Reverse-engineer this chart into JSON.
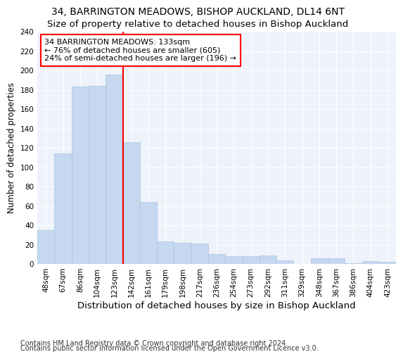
{
  "title": "34, BARRINGTON MEADOWS, BISHOP AUCKLAND, DL14 6NT",
  "subtitle": "Size of property relative to detached houses in Bishop Auckland",
  "xlabel": "Distribution of detached houses by size in Bishop Auckland",
  "ylabel": "Number of detached properties",
  "categories": [
    "48sqm",
    "67sqm",
    "86sqm",
    "104sqm",
    "123sqm",
    "142sqm",
    "161sqm",
    "179sqm",
    "198sqm",
    "217sqm",
    "236sqm",
    "254sqm",
    "273sqm",
    "292sqm",
    "311sqm",
    "329sqm",
    "348sqm",
    "367sqm",
    "386sqm",
    "404sqm",
    "423sqm"
  ],
  "values": [
    35,
    114,
    183,
    184,
    196,
    126,
    64,
    23,
    22,
    21,
    10,
    8,
    8,
    9,
    4,
    0,
    6,
    6,
    1,
    3,
    2
  ],
  "bar_color": "#c5d8f0",
  "bar_edgecolor": "#a8c4e0",
  "vline_x": 5.0,
  "vline_color": "red",
  "annotation_text": "34 BARRINGTON MEADOWS: 133sqm\n← 76% of detached houses are smaller (605)\n24% of semi-detached houses are larger (196) →",
  "annotation_box_color": "white",
  "annotation_box_edgecolor": "red",
  "ylim": [
    0,
    240
  ],
  "yticks": [
    0,
    20,
    40,
    60,
    80,
    100,
    120,
    140,
    160,
    180,
    200,
    220,
    240
  ],
  "footer1": "Contains HM Land Registry data © Crown copyright and database right 2024.",
  "footer2": "Contains public sector information licensed under the Open Government Licence v3.0.",
  "background_color": "#eef2fa",
  "title_fontsize": 10,
  "subtitle_fontsize": 9.5,
  "xlabel_fontsize": 9.5,
  "ylabel_fontsize": 8.5,
  "tick_fontsize": 7.5,
  "annotation_fontsize": 8,
  "footer_fontsize": 7
}
